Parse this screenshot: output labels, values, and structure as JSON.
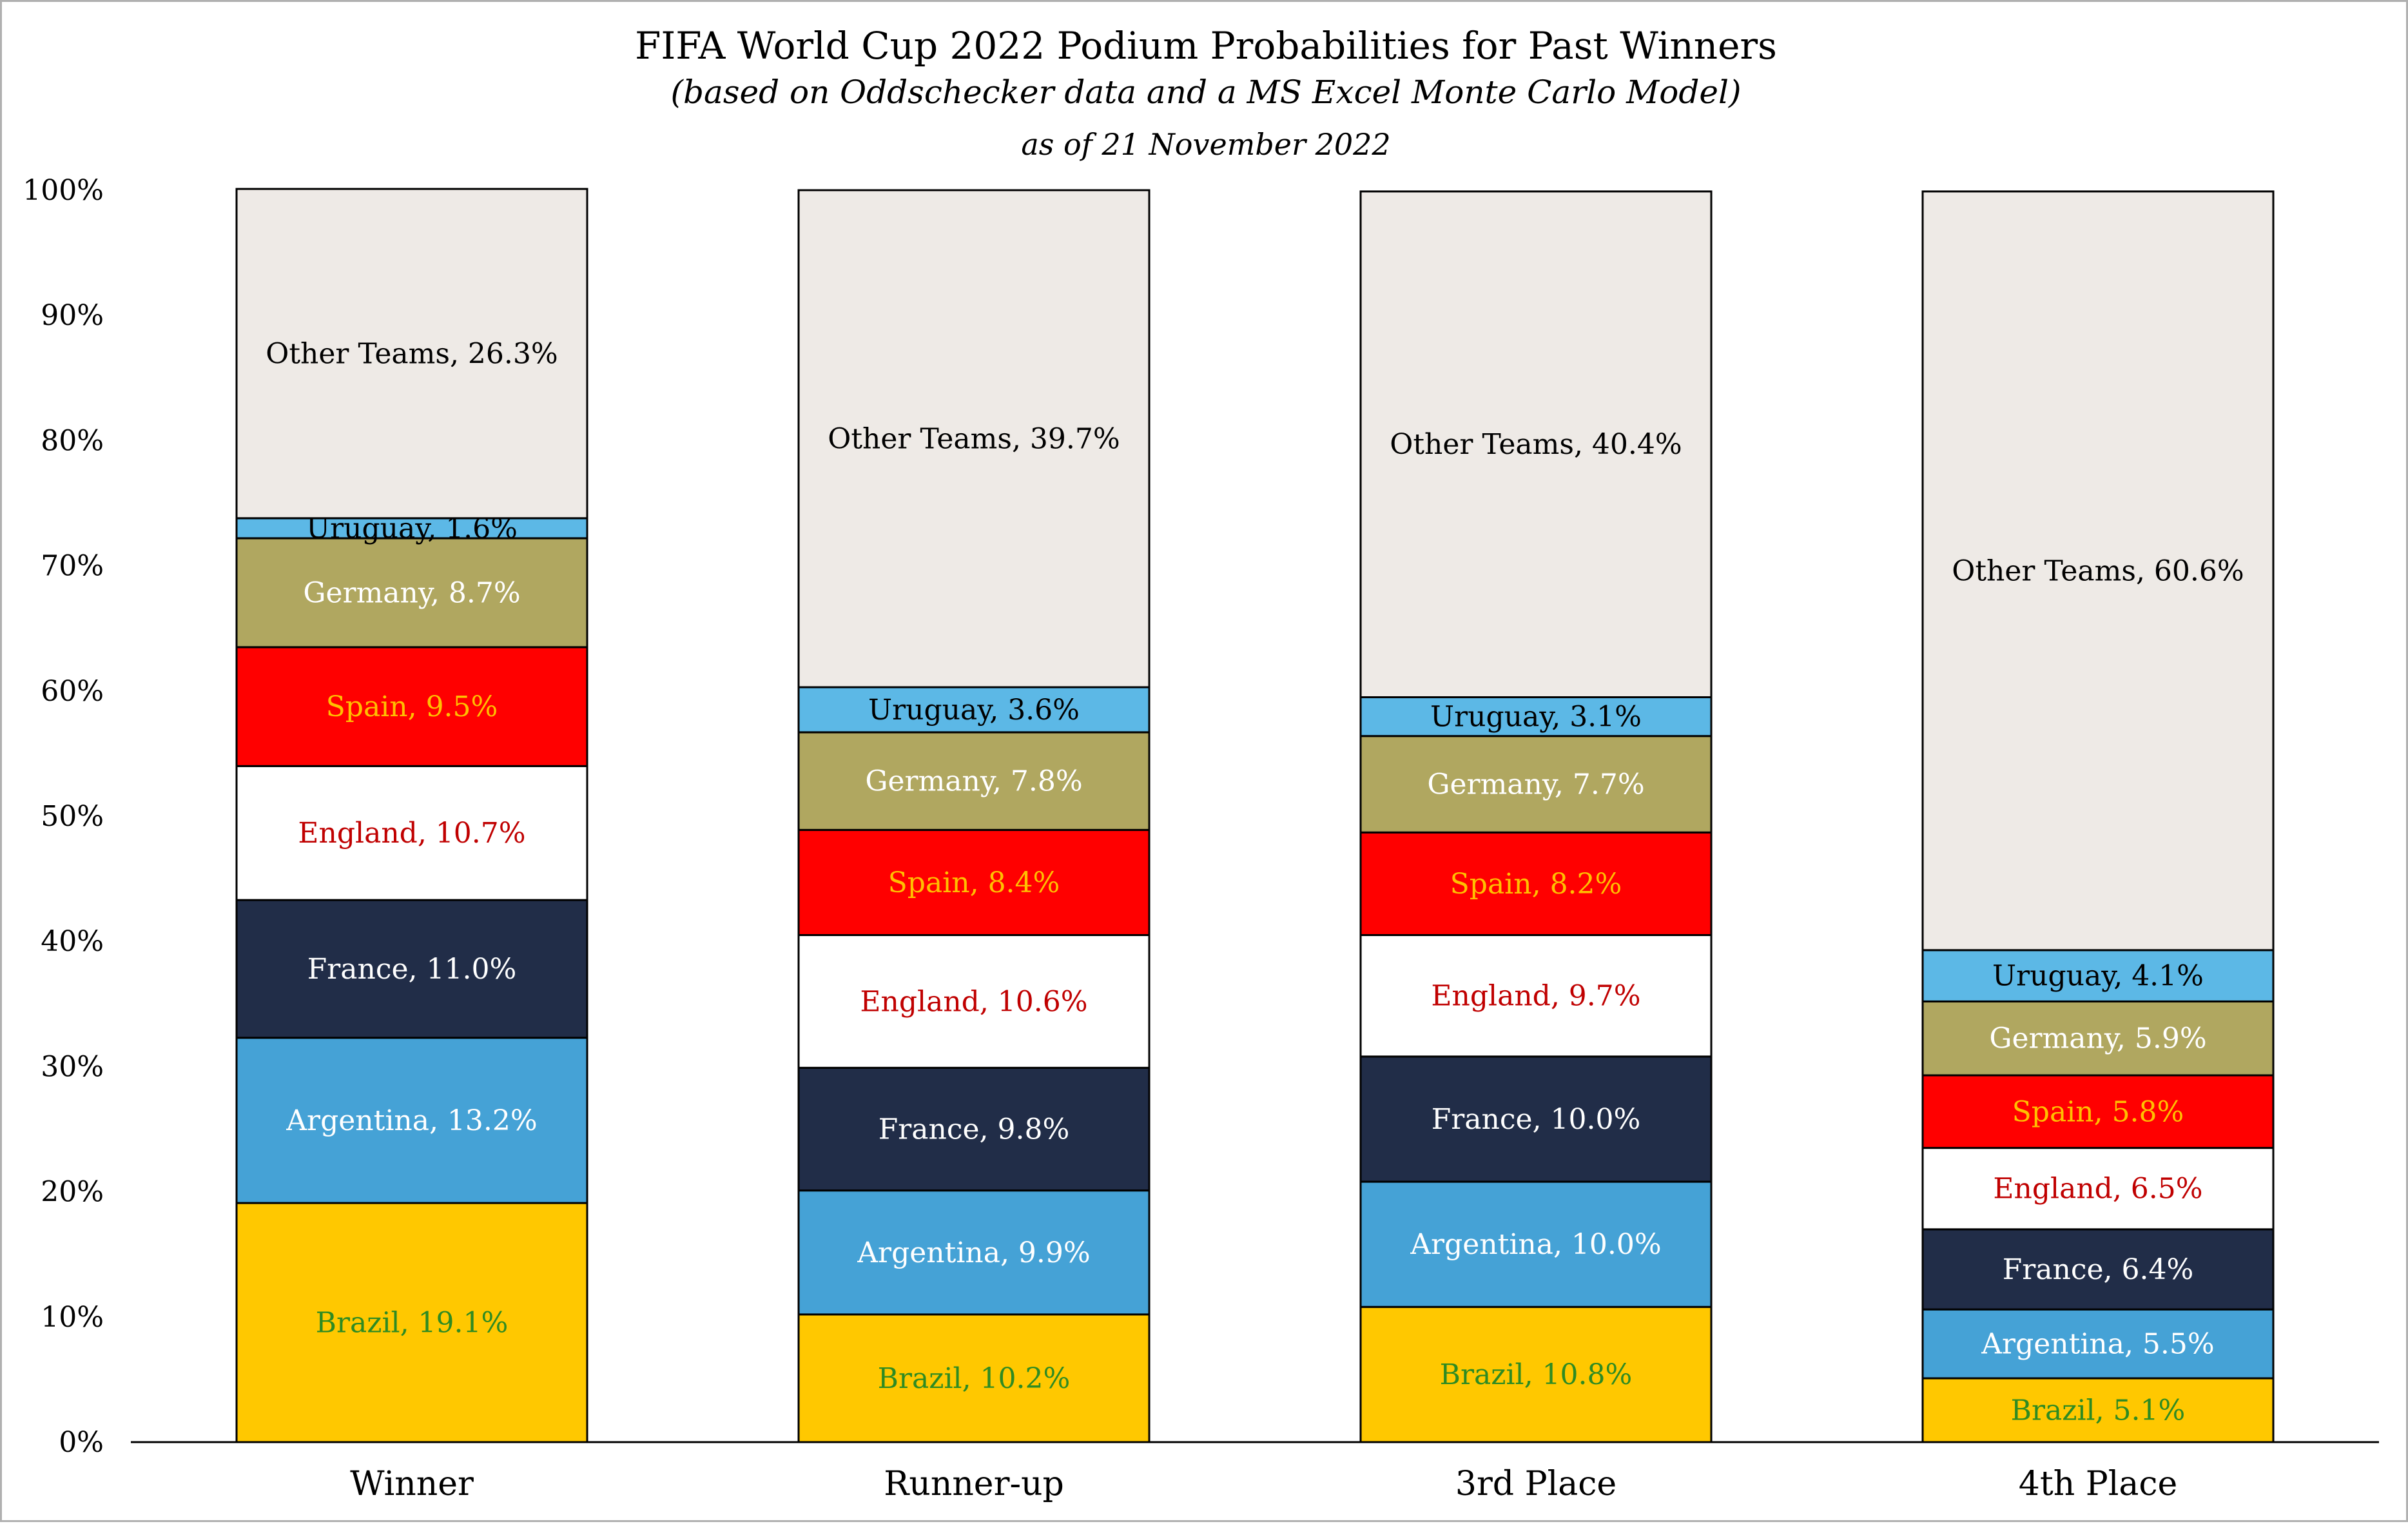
{
  "chart_data": {
    "type": "bar",
    "stacked": true,
    "title": "FIFA World Cup 2022 Podium Probabilities for Past Winners",
    "subtitle": "(based on Oddschecker data and a MS Excel Monte Carlo Model)",
    "date_note": "as of 21 November 2022",
    "categories": [
      "Winner",
      "Runner-up",
      "3rd Place",
      "4th Place"
    ],
    "ylim": [
      0,
      100
    ],
    "yticks": [
      "0%",
      "10%",
      "20%",
      "30%",
      "40%",
      "50%",
      "60%",
      "70%",
      "80%",
      "90%",
      "100%"
    ],
    "grid": false,
    "series": [
      {
        "name": "Brazil",
        "fill": "#FFC800",
        "text_color": "#2E8B22",
        "values": [
          19.1,
          10.2,
          10.8,
          5.1
        ],
        "labels": [
          "Brazil, 19.1%",
          "Brazil, 10.2%",
          "Brazil, 10.8%",
          "Brazil, 5.1%"
        ]
      },
      {
        "name": "Argentina",
        "fill": "#45A2D6",
        "text_color": "#FFFFFF",
        "values": [
          13.2,
          9.9,
          10.0,
          5.5
        ],
        "labels": [
          "Argentina, 13.2%",
          "Argentina, 9.9%",
          "Argentina, 10.0%",
          "Argentina, 5.5%"
        ]
      },
      {
        "name": "France",
        "fill": "#212D48",
        "text_color": "#FFFFFF",
        "values": [
          11.0,
          9.8,
          10.0,
          6.4
        ],
        "labels": [
          "France, 11.0%",
          "France, 9.8%",
          "France, 10.0%",
          "France, 6.4%"
        ]
      },
      {
        "name": "England",
        "fill": "#FFFFFF",
        "text_color": "#C00000",
        "values": [
          10.7,
          10.6,
          9.7,
          6.5
        ],
        "labels": [
          "England, 10.7%",
          "England, 10.6%",
          "England, 9.7%",
          "England, 6.5%"
        ]
      },
      {
        "name": "Spain",
        "fill": "#FF0000",
        "text_color": "#FFC000",
        "values": [
          9.5,
          8.4,
          8.2,
          5.8
        ],
        "labels": [
          "Spain, 9.5%",
          "Spain, 8.4%",
          "Spain, 8.2%",
          "Spain, 5.8%"
        ]
      },
      {
        "name": "Germany",
        "fill": "#B0A760",
        "text_color": "#FFFFFF",
        "values": [
          8.7,
          7.8,
          7.7,
          5.9
        ],
        "labels": [
          "Germany, 8.7%",
          "Germany, 7.8%",
          "Germany, 7.7%",
          "Germany, 5.9%"
        ]
      },
      {
        "name": "Uruguay",
        "fill": "#5CB8E6",
        "text_color": "#000000",
        "values": [
          1.6,
          3.6,
          3.1,
          4.1
        ],
        "labels": [
          "Uruguay, 1.6%",
          "Uruguay, 3.6%",
          "Uruguay, 3.1%",
          "Uruguay, 4.1%"
        ]
      },
      {
        "name": "Other Teams",
        "fill": "#EEEAE6",
        "text_color": "#000000",
        "values": [
          26.3,
          39.7,
          40.4,
          60.6
        ],
        "labels": [
          "Other Teams, 26.3%",
          "Other Teams, 39.7%",
          "Other Teams, 40.4%",
          "Other Teams, 60.6%"
        ]
      }
    ]
  }
}
